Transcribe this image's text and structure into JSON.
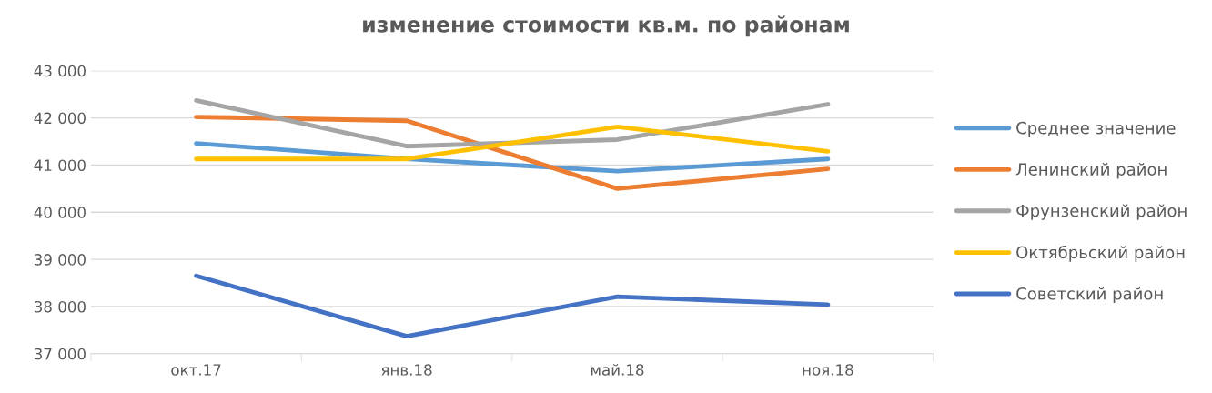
{
  "chart_data": {
    "type": "line",
    "title": "изменение стоимости кв.м. по районам",
    "categories": [
      "окт.17",
      "янв.18",
      "май.18",
      "ноя.18"
    ],
    "series": [
      {
        "name": "Среднее значение",
        "color": "#5b9bd5",
        "values": [
          41460,
          41130,
          40870,
          41130
        ]
      },
      {
        "name": "Ленинский район",
        "color": "#ed7d31",
        "values": [
          42020,
          41940,
          40500,
          40920
        ]
      },
      {
        "name": "Фрунзенский район",
        "color": "#a5a5a5",
        "values": [
          42370,
          41400,
          41540,
          42290
        ]
      },
      {
        "name": "Октябрьский район",
        "color": "#ffc000",
        "values": [
          41130,
          41130,
          41810,
          41290
        ]
      },
      {
        "name": "Советский район",
        "color": "#4472c4",
        "values": [
          38650,
          37370,
          38210,
          38040
        ]
      }
    ],
    "ylim": [
      37000,
      43000
    ],
    "yticks": [
      {
        "value": 37000,
        "label": "37 000"
      },
      {
        "value": 38000,
        "label": "38 000"
      },
      {
        "value": 39000,
        "label": "39 000"
      },
      {
        "value": 40000,
        "label": "40 000"
      },
      {
        "value": 41000,
        "label": "41 000"
      },
      {
        "value": 42000,
        "label": "42 000"
      },
      {
        "value": 43000,
        "label": "43 000"
      }
    ],
    "grid": "y",
    "legend": "right",
    "marker": "none",
    "line_style": "solid"
  }
}
